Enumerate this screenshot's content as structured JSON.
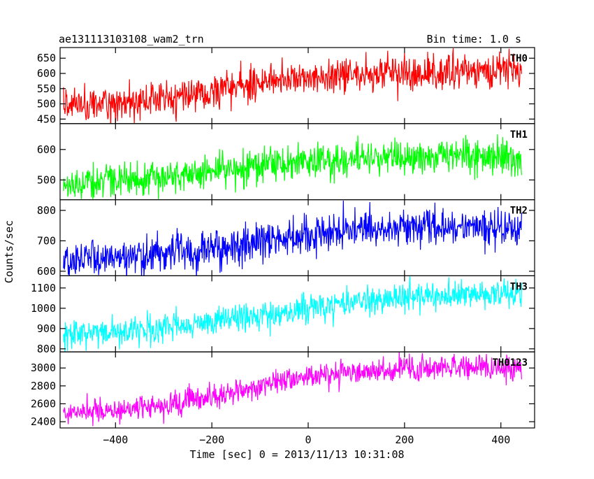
{
  "header": {
    "left_title": "ae131113103108_wam2_trn",
    "right_title": "Bin time: 1.0 s"
  },
  "chart_data": {
    "type": "line",
    "title": "ae131113103108_wam2_trn",
    "subtitle": "Bin time: 1.0 s",
    "xlabel": "Time [sec] 0 = 2013/11/13 10:31:08",
    "ylabel": "Counts/sec",
    "xlim": [
      -515,
      470
    ],
    "x_ticks": [
      -400,
      -200,
      0,
      200,
      400
    ],
    "x_tick_labels": [
      "−400",
      "−200",
      "0",
      "200",
      "400"
    ],
    "x_start": -508,
    "x_end": 443,
    "bin_time": 1.0,
    "grid": false,
    "panels": [
      {
        "name": "TH0",
        "color": "#ff0000",
        "ylim": [
          435,
          685
        ],
        "yticks": [
          450,
          500,
          550,
          600,
          650
        ],
        "ytick_labels": [
          "450",
          "500",
          "550",
          "600",
          "650"
        ],
        "trend_points": [
          [
            -508,
            495
          ],
          [
            -400,
            505
          ],
          [
            -300,
            515
          ],
          [
            -200,
            545
          ],
          [
            -100,
            570
          ],
          [
            0,
            585
          ],
          [
            100,
            595
          ],
          [
            200,
            600
          ],
          [
            300,
            605
          ],
          [
            443,
            610
          ]
        ],
        "noise": 28
      },
      {
        "name": "TH1",
        "color": "#00ff00",
        "ylim": [
          435,
          685
        ],
        "yticks": [
          500,
          600
        ],
        "ytick_labels": [
          "500",
          "600"
        ],
        "trend_points": [
          [
            -508,
            485
          ],
          [
            -400,
            495
          ],
          [
            -300,
            505
          ],
          [
            -200,
            525
          ],
          [
            -100,
            545
          ],
          [
            0,
            560
          ],
          [
            100,
            570
          ],
          [
            200,
            575
          ],
          [
            300,
            580
          ],
          [
            443,
            580
          ]
        ],
        "noise": 28
      },
      {
        "name": "TH2",
        "color": "#0000ff",
        "ylim": [
          585,
          835
        ],
        "yticks": [
          600,
          700,
          800
        ],
        "ytick_labels": [
          "600",
          "700",
          "800"
        ],
        "trend_points": [
          [
            -508,
            635
          ],
          [
            -400,
            645
          ],
          [
            -300,
            655
          ],
          [
            -200,
            675
          ],
          [
            -100,
            700
          ],
          [
            0,
            720
          ],
          [
            100,
            735
          ],
          [
            200,
            745
          ],
          [
            300,
            745
          ],
          [
            443,
            745
          ]
        ],
        "noise": 30
      },
      {
        "name": "TH3",
        "color": "#00ffff",
        "ylim": [
          785,
          1160
        ],
        "yticks": [
          800,
          900,
          1000,
          1100
        ],
        "ytick_labels": [
          "800",
          "900",
          "1000",
          "1100"
        ],
        "trend_points": [
          [
            -508,
            870
          ],
          [
            -400,
            885
          ],
          [
            -300,
            905
          ],
          [
            -200,
            935
          ],
          [
            -100,
            970
          ],
          [
            0,
            1000
          ],
          [
            100,
            1030
          ],
          [
            200,
            1055
          ],
          [
            300,
            1065
          ],
          [
            443,
            1070
          ]
        ],
        "noise": 35
      },
      {
        "name": "TH0123",
        "color": "#ff00ff",
        "ylim": [
          2330,
          3180
        ],
        "yticks": [
          2400,
          2600,
          2800,
          3000
        ],
        "ytick_labels": [
          "2400",
          "2600",
          "2800",
          "3000"
        ],
        "trend_points": [
          [
            -508,
            2480
          ],
          [
            -400,
            2530
          ],
          [
            -300,
            2580
          ],
          [
            -200,
            2680
          ],
          [
            -100,
            2800
          ],
          [
            0,
            2900
          ],
          [
            100,
            2960
          ],
          [
            200,
            2990
          ],
          [
            300,
            3000
          ],
          [
            443,
            3010
          ]
        ],
        "noise": 70
      }
    ]
  }
}
